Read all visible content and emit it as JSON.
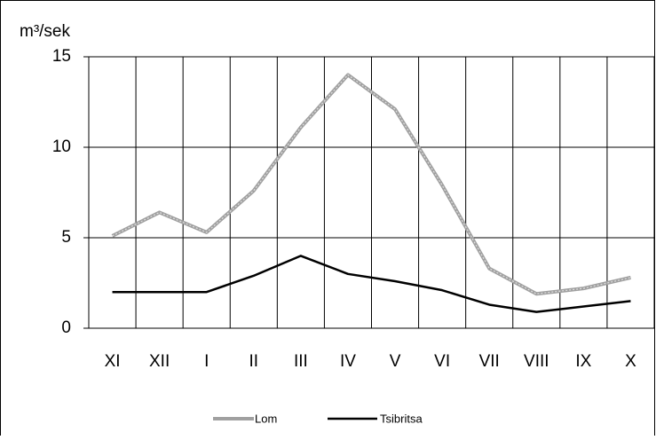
{
  "chart_data": {
    "type": "line",
    "y_label": "m³/sek",
    "categories": [
      "XI",
      "XII",
      "I",
      "II",
      "III",
      "IV",
      "V",
      "VI",
      "VII",
      "VIII",
      "IX",
      "X"
    ],
    "series": [
      {
        "name": "Lom",
        "color": "#a0a0a0",
        "values": [
          5.1,
          6.4,
          5.3,
          7.6,
          11.1,
          14.0,
          12.1,
          7.9,
          3.3,
          1.9,
          2.2,
          2.8
        ]
      },
      {
        "name": "Tsibritsa",
        "color": "#000000",
        "values": [
          2.0,
          2.0,
          2.0,
          2.9,
          4.0,
          3.0,
          2.6,
          2.1,
          1.3,
          0.9,
          1.2,
          1.5
        ]
      }
    ],
    "ylim": [
      0,
      15
    ],
    "yticks": [
      0,
      5,
      10,
      15
    ],
    "grid": true,
    "legend": "bottom"
  }
}
